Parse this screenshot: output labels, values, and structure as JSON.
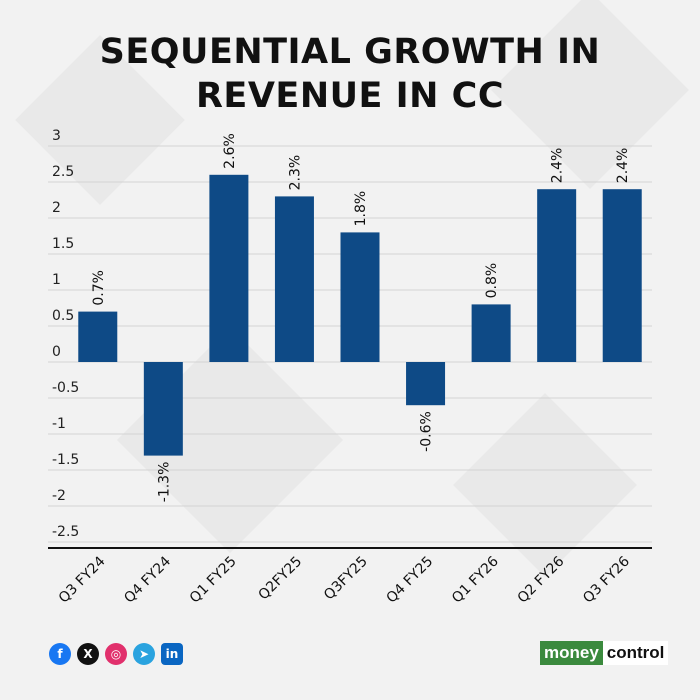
{
  "title_line1": "SEQUENTIAL GROWTH IN",
  "title_line2": "REVENUE IN CC",
  "chart_data": {
    "type": "bar",
    "categories": [
      "Q3 FY24",
      "Q4 FY24",
      "Q1 FY25",
      "Q2FY25",
      "Q3FY25",
      "Q4 FY25",
      "Q1 FY26",
      "Q2 FY26",
      "Q3 FY26"
    ],
    "values": [
      0.7,
      -1.3,
      2.6,
      2.3,
      1.8,
      -0.6,
      0.8,
      2.4,
      2.4
    ],
    "data_labels": [
      "0.7%",
      "-1.3%",
      "2.6%",
      "2.3%",
      "1.8%",
      "-0.6%",
      "0.8%",
      "2.4%",
      "2.4%"
    ],
    "yticks": [
      "3",
      "2.5",
      "2",
      "1.5",
      "1",
      "0.5",
      "0",
      "-0.5",
      "-1",
      "-1.5",
      "-2",
      "-2.5"
    ],
    "ylim": [
      -2.5,
      3
    ],
    "grid": true,
    "bar_color": "#0e4a86"
  },
  "footer": {
    "social_icons": [
      "facebook-icon",
      "x-icon",
      "instagram-icon",
      "telegram-icon",
      "linkedin-icon"
    ],
    "logo_money": "money",
    "logo_control": "control",
    "logo_colors": {
      "money_bg": "#3b8a3e",
      "control_bg": "#ffffff",
      "control_text": "#111111"
    }
  }
}
